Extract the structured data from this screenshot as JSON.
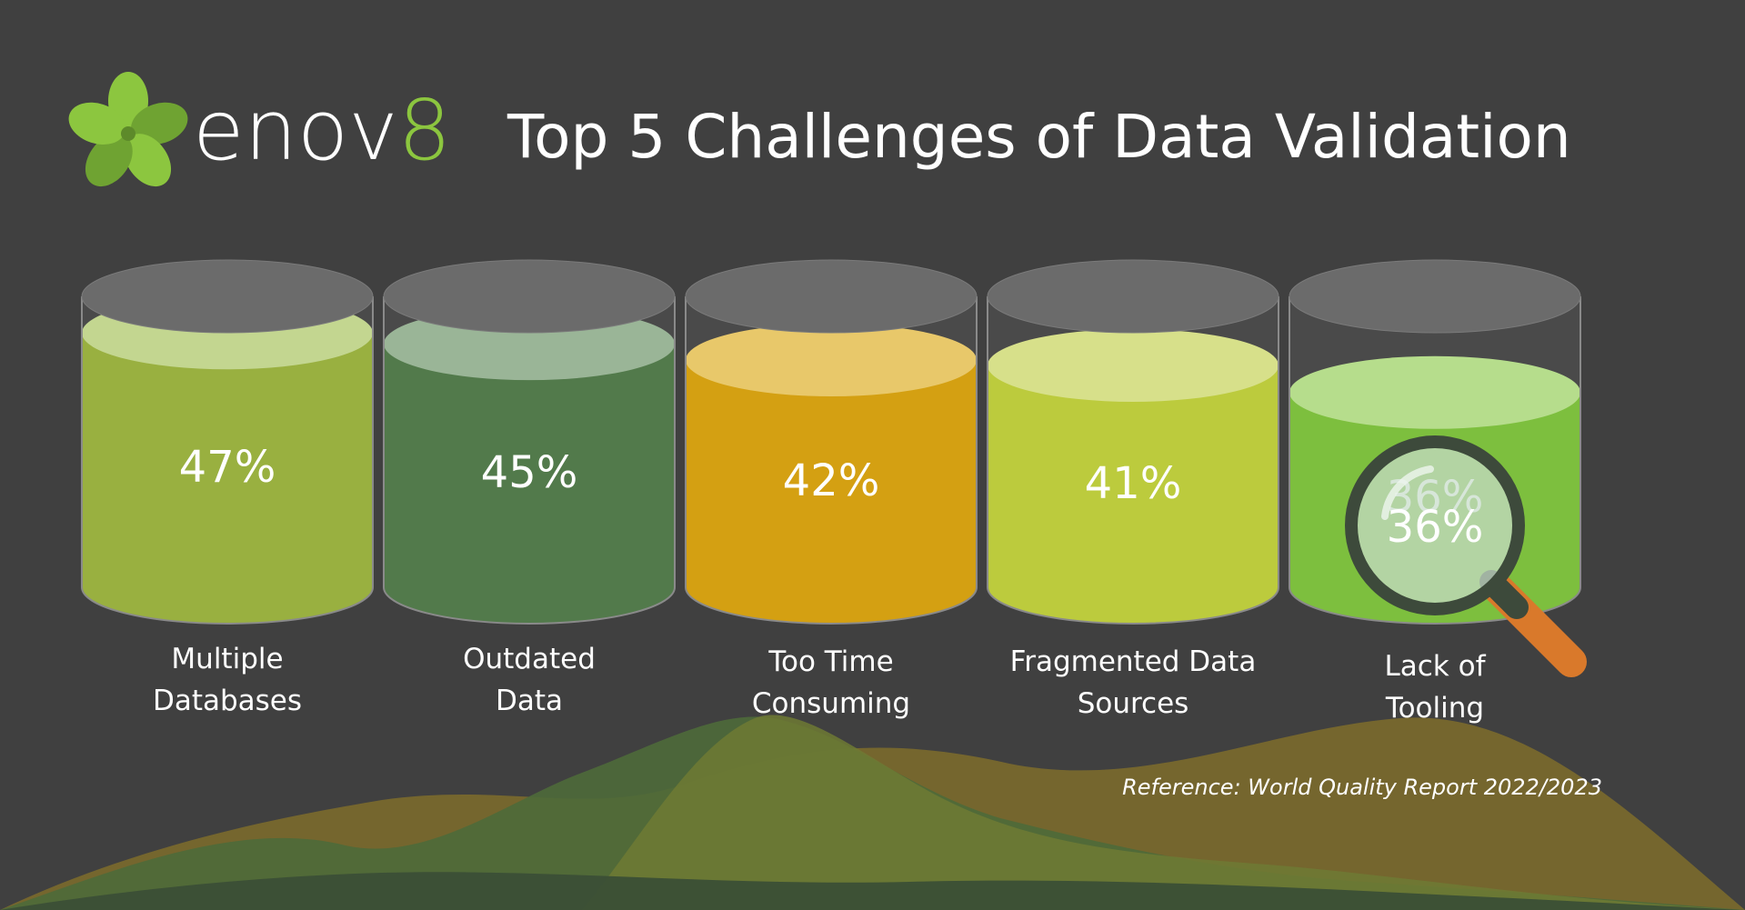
{
  "brand": {
    "name_prefix": "enov",
    "name_suffix": "8",
    "accent": "#8cc63f",
    "icon": "clover-logo"
  },
  "title": "Top 5 Challenges of Data Validation",
  "reference": "Reference: World Quality Report 2022/2023",
  "colors": {
    "background": "#404040",
    "cylinder_top": "#6b6b6b",
    "cylinder_outline": "#8a8a8a"
  },
  "chart_data": {
    "type": "bar",
    "title": "Top 5 Challenges of Data Validation",
    "unit": "%",
    "ylim": [
      0,
      100
    ],
    "categories": [
      [
        "Multiple",
        "Databases"
      ],
      [
        "Outdated",
        "Data"
      ],
      [
        "Too Time",
        "Consuming"
      ],
      [
        "Fragmented Data",
        "Sources"
      ],
      [
        "Lack of",
        "Tooling"
      ]
    ],
    "values": [
      47,
      45,
      42,
      41,
      36
    ],
    "value_labels": [
      "47%",
      "45%",
      "42%",
      "41%",
      "36%"
    ],
    "colors": [
      "#99b040",
      "#527a4b",
      "#d4a012",
      "#bccb3d",
      "#7dbf3e"
    ],
    "top_colors": [
      "#c3d690",
      "#9ab597",
      "#e8c86a",
      "#d7e08a",
      "#b6dd8c"
    ],
    "highlight": {
      "index": 4,
      "icon": "magnifying-glass-icon"
    }
  }
}
